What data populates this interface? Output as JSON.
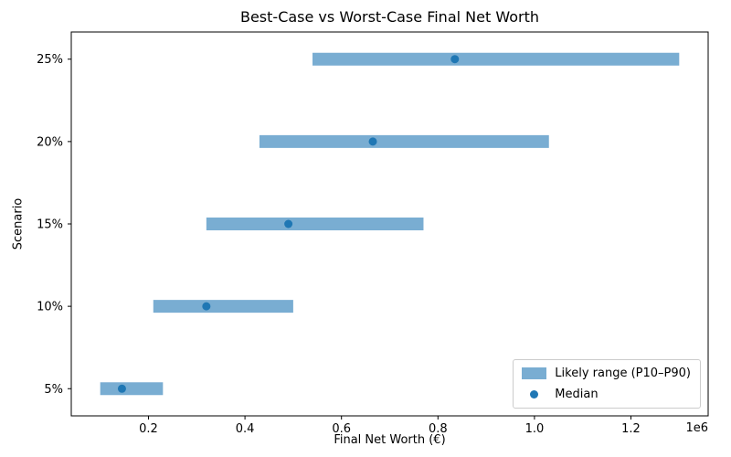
{
  "chart_data": {
    "type": "bar",
    "orientation": "horizontal",
    "title": "Best-Case vs Worst-Case Final Net Worth",
    "xlabel": "Final Net Worth (€)",
    "ylabel": "Scenario",
    "x_offset_text": "1e6",
    "categories": [
      "5%",
      "10%",
      "15%",
      "20%",
      "25%"
    ],
    "series": [
      {
        "name": "Likely range (P10–P90)",
        "type": "range_bar",
        "p10": [
          100000,
          210000,
          320000,
          430000,
          540000
        ],
        "p90": [
          230000,
          500000,
          770000,
          1030000,
          1300000
        ]
      },
      {
        "name": "Median",
        "type": "scatter",
        "values": [
          145000,
          320000,
          490000,
          665000,
          835000
        ]
      }
    ],
    "xlim": [
      40000,
      1360000
    ],
    "xticks": [
      200000,
      400000,
      600000,
      800000,
      1000000,
      1200000
    ],
    "xtick_labels": [
      "0.2",
      "0.4",
      "0.6",
      "0.8",
      "1.0",
      "1.2"
    ],
    "colors": {
      "range": "#79add2",
      "median": "#1f77b4",
      "spine": "#000000"
    },
    "grid": false,
    "legend": {
      "location": "lower right",
      "items": [
        {
          "label": "Likely range (P10–P90)",
          "marker": "patch"
        },
        {
          "label": "Median",
          "marker": "dot"
        }
      ]
    }
  }
}
